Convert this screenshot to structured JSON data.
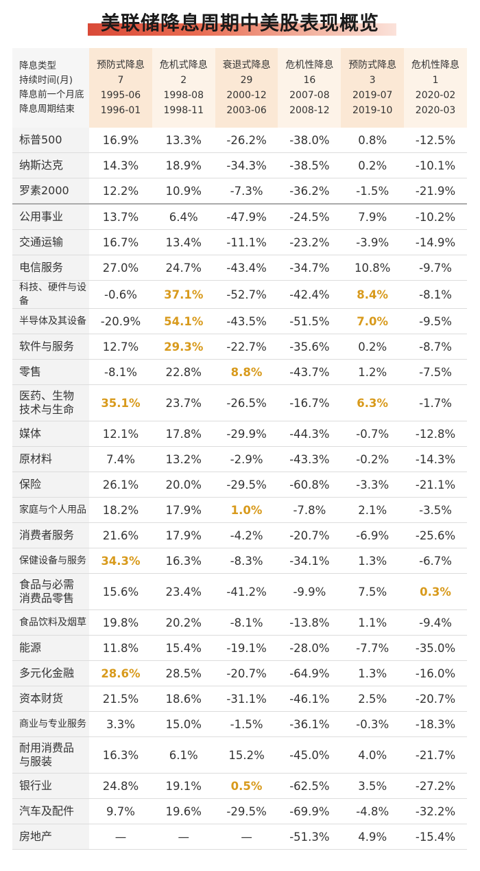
{
  "title": "美联储降息周期中美股表现概览",
  "header": {
    "row_labels": [
      "降息类型",
      "持续时间(月)",
      "降息前一个月底",
      "降息周期结束"
    ],
    "cycles": [
      {
        "type": "预防式降息",
        "months": "7",
        "start": "1995-06",
        "end": "1996-01"
      },
      {
        "type": "危机式降息",
        "months": "2",
        "start": "1998-08",
        "end": "1998-11"
      },
      {
        "type": "衰退式降息",
        "months": "29",
        "start": "2000-12",
        "end": "2003-06"
      },
      {
        "type": "危机性降息",
        "months": "16",
        "start": "2007-08",
        "end": "2008-12"
      },
      {
        "type": "预防式降息",
        "months": "3",
        "start": "2019-07",
        "end": "2019-10"
      },
      {
        "type": "危机性降息",
        "months": "1",
        "start": "2020-02",
        "end": "2020-03"
      }
    ]
  },
  "highlight_color": "#d89a1c",
  "rows": [
    {
      "name": "标普500",
      "values": [
        "16.9%",
        "13.3%",
        "-26.2%",
        "-38.0%",
        "0.8%",
        "-12.5%"
      ],
      "hl": []
    },
    {
      "name": "纳斯达克",
      "values": [
        "14.3%",
        "18.9%",
        "-34.3%",
        "-38.5%",
        "0.2%",
        "-10.1%"
      ],
      "hl": []
    },
    {
      "name": "罗素2000",
      "values": [
        "12.2%",
        "10.9%",
        "-7.3%",
        "-36.2%",
        "-1.5%",
        "-21.9%"
      ],
      "hl": []
    },
    {
      "name": "公用事业",
      "values": [
        "13.7%",
        "6.4%",
        "-47.9%",
        "-24.5%",
        "7.9%",
        "-10.2%"
      ],
      "hl": []
    },
    {
      "name": "交通运输",
      "values": [
        "16.7%",
        "13.4%",
        "-11.1%",
        "-23.2%",
        "-3.9%",
        "-14.9%"
      ],
      "hl": []
    },
    {
      "name": "电信服务",
      "values": [
        "27.0%",
        "24.7%",
        "-43.4%",
        "-34.7%",
        "10.8%",
        "-9.7%"
      ],
      "hl": []
    },
    {
      "name": "科技、硬件与设备",
      "values": [
        "-0.6%",
        "37.1%",
        "-52.7%",
        "-42.4%",
        "8.4%",
        "-8.1%"
      ],
      "hl": [
        1,
        4
      ]
    },
    {
      "name": "半导体及其设备",
      "values": [
        "-20.9%",
        "54.1%",
        "-43.5%",
        "-51.5%",
        "7.0%",
        "-9.5%"
      ],
      "hl": [
        1,
        4
      ]
    },
    {
      "name": "软件与服务",
      "values": [
        "12.7%",
        "29.3%",
        "-22.7%",
        "-35.6%",
        "0.2%",
        "-8.7%"
      ],
      "hl": [
        1
      ]
    },
    {
      "name": "零售",
      "values": [
        "-8.1%",
        "22.8%",
        "8.8%",
        "-43.7%",
        "1.2%",
        "-7.5%"
      ],
      "hl": [
        2
      ]
    },
    {
      "name": "医药、生物\n技术与生命",
      "values": [
        "35.1%",
        "23.7%",
        "-26.5%",
        "-16.7%",
        "6.3%",
        "-1.7%"
      ],
      "hl": [
        0,
        4
      ]
    },
    {
      "name": "媒体",
      "values": [
        "12.1%",
        "17.8%",
        "-29.9%",
        "-44.3%",
        "-0.7%",
        "-12.8%"
      ],
      "hl": []
    },
    {
      "name": "原材料",
      "values": [
        "7.4%",
        "13.2%",
        "-2.9%",
        "-43.3%",
        "-0.2%",
        "-14.3%"
      ],
      "hl": []
    },
    {
      "name": "保险",
      "values": [
        "26.1%",
        "20.0%",
        "-29.5%",
        "-60.8%",
        "-3.3%",
        "-21.1%"
      ],
      "hl": []
    },
    {
      "name": "家庭与个人用品",
      "values": [
        "18.2%",
        "17.9%",
        "1.0%",
        "-7.8%",
        "2.1%",
        "-3.5%"
      ],
      "hl": [
        2
      ]
    },
    {
      "name": "消费者服务",
      "values": [
        "21.6%",
        "17.9%",
        "-4.2%",
        "-20.7%",
        "-6.9%",
        "-25.6%"
      ],
      "hl": []
    },
    {
      "name": "保健设备与服务",
      "values": [
        "34.3%",
        "16.3%",
        "-8.3%",
        "-34.1%",
        "1.3%",
        "-6.7%"
      ],
      "hl": [
        0
      ]
    },
    {
      "name": "食品与必需\n消费品零售",
      "values": [
        "15.6%",
        "23.4%",
        "-41.2%",
        "-9.9%",
        "7.5%",
        "0.3%"
      ],
      "hl": [
        5
      ]
    },
    {
      "name": "食品饮料及烟草",
      "values": [
        "19.8%",
        "20.2%",
        "-8.1%",
        "-13.8%",
        "1.1%",
        "-9.4%"
      ],
      "hl": []
    },
    {
      "name": "能源",
      "values": [
        "11.8%",
        "15.4%",
        "-19.1%",
        "-28.0%",
        "-7.7%",
        "-35.0%"
      ],
      "hl": []
    },
    {
      "name": "多元化金融",
      "values": [
        "28.6%",
        "28.5%",
        "-20.7%",
        "-64.9%",
        "1.3%",
        "-16.0%"
      ],
      "hl": [
        0
      ]
    },
    {
      "name": "资本财货",
      "values": [
        "21.5%",
        "18.6%",
        "-31.1%",
        "-46.1%",
        "2.5%",
        "-20.7%"
      ],
      "hl": []
    },
    {
      "name": "商业与专业服务",
      "values": [
        "3.3%",
        "15.0%",
        "-1.5%",
        "-36.1%",
        "-0.3%",
        "-18.3%"
      ],
      "hl": []
    },
    {
      "name": "耐用消费品\n与服装",
      "values": [
        "16.3%",
        "6.1%",
        "15.2%",
        "-45.0%",
        "4.0%",
        "-21.7%"
      ],
      "hl": []
    },
    {
      "name": "银行业",
      "values": [
        "24.8%",
        "19.1%",
        "0.5%",
        "-62.5%",
        "3.5%",
        "-27.2%"
      ],
      "hl": [
        2
      ]
    },
    {
      "name": "汽车及配件",
      "values": [
        "9.7%",
        "19.6%",
        "-29.5%",
        "-69.9%",
        "-4.8%",
        "-32.2%"
      ],
      "hl": []
    },
    {
      "name": "房地产",
      "values": [
        "—",
        "—",
        "—",
        "-51.3%",
        "4.9%",
        "-15.4%"
      ],
      "hl": []
    }
  ]
}
